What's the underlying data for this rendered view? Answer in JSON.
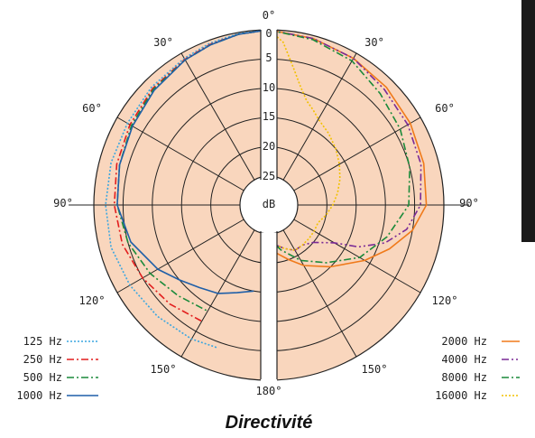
{
  "chart_data": {
    "type": "polar",
    "title": "Directivité",
    "unit": "dB",
    "radial_ticks": [
      "0",
      "5",
      "10",
      "15",
      "20",
      "25"
    ],
    "angle_ticks": {
      "top": "0°",
      "a30l": "30°",
      "a30r": "30°",
      "a60l": "60°",
      "a60r": "60°",
      "a90l": "90°",
      "a90r": "90°",
      "a120l": "120°",
      "a120r": "120°",
      "a150l": "150°",
      "a150r": "150°",
      "bottom": "180°"
    },
    "fill_color": "#f9d6bd",
    "series_left": [
      {
        "name": "125 Hz",
        "color": "#3aa6e0",
        "dash": "2,2",
        "angles": [
          0,
          10,
          20,
          30,
          45,
          60,
          75,
          90,
          105,
          120,
          135,
          150,
          160
        ],
        "values_db": [
          0,
          0.2,
          0.5,
          1,
          1.5,
          2,
          2,
          2,
          2,
          2.5,
          3,
          3.5,
          4
        ]
      },
      {
        "name": "250 Hz",
        "color": "#e21d1d",
        "dash": "8,3,2,3",
        "angles": [
          0,
          10,
          20,
          30,
          45,
          60,
          75,
          90,
          105,
          120,
          135,
          150
        ],
        "values_db": [
          0,
          0.3,
          0.7,
          1.2,
          1.8,
          2.5,
          3,
          3.5,
          4,
          5,
          6,
          7
        ]
      },
      {
        "name": "500 Hz",
        "color": "#1a8a3a",
        "dash": "8,3,2,3",
        "angles": [
          0,
          10,
          20,
          30,
          45,
          60,
          75,
          90,
          105,
          120,
          135,
          150
        ],
        "values_db": [
          0,
          0.3,
          0.8,
          1.3,
          2,
          2.8,
          3.5,
          4,
          5,
          6.5,
          8,
          9
        ]
      },
      {
        "name": "1000 Hz",
        "color": "#1f5fa8",
        "dash": "",
        "angles": [
          0,
          10,
          20,
          30,
          45,
          60,
          75,
          90,
          105,
          120,
          130,
          140,
          150,
          160,
          170
        ],
        "values_db": [
          0,
          0.3,
          0.8,
          1.3,
          2.2,
          3,
          3.5,
          4,
          5.5,
          8,
          10,
          11.5,
          12.5,
          14,
          15
        ]
      }
    ],
    "series_right": [
      {
        "name": "2000 Hz",
        "color": "#f07a1a",
        "dash": "",
        "angles": [
          0,
          15,
          30,
          45,
          60,
          75,
          90,
          100,
          110,
          120,
          135,
          150,
          160,
          175
        ],
        "values_db": [
          0,
          0.5,
          1,
          1.5,
          2,
          2.5,
          3,
          5,
          8,
          11,
          15,
          18,
          20,
          22
        ]
      },
      {
        "name": "4000 Hz",
        "color": "#7a2a96",
        "dash": "8,3,2,3,2,3",
        "angles": [
          0,
          15,
          30,
          45,
          60,
          75,
          90,
          100,
          108,
          115,
          120,
          130,
          140,
          150,
          160,
          170,
          175
        ],
        "values_db": [
          0,
          0.5,
          1,
          2,
          2.5,
          3,
          4,
          6,
          9,
          13,
          17,
          20,
          21,
          21,
          22,
          23,
          24
        ]
      },
      {
        "name": "8000 Hz",
        "color": "#1a8a3a",
        "dash": "8,3,2,3",
        "angles": [
          0,
          15,
          30,
          45,
          60,
          75,
          90,
          105,
          120,
          135,
          150,
          165,
          178
        ],
        "values_db": [
          0,
          0.7,
          1.5,
          3,
          4,
          5,
          6,
          9,
          12,
          16,
          19,
          22,
          24
        ]
      },
      {
        "name": "16000 Hz",
        "color": "#f2c100",
        "dash": "2,2",
        "angles": [
          0,
          5,
          10,
          15,
          20,
          25,
          30,
          40,
          50,
          60,
          70,
          80,
          90,
          100,
          110,
          120,
          130,
          140,
          150,
          160,
          170,
          178
        ],
        "values_db": [
          0,
          2,
          6,
          9,
          11,
          12,
          13,
          14,
          15,
          16,
          17,
          18,
          19,
          20,
          21,
          21,
          21,
          21,
          21,
          22,
          23,
          24
        ]
      }
    ]
  }
}
